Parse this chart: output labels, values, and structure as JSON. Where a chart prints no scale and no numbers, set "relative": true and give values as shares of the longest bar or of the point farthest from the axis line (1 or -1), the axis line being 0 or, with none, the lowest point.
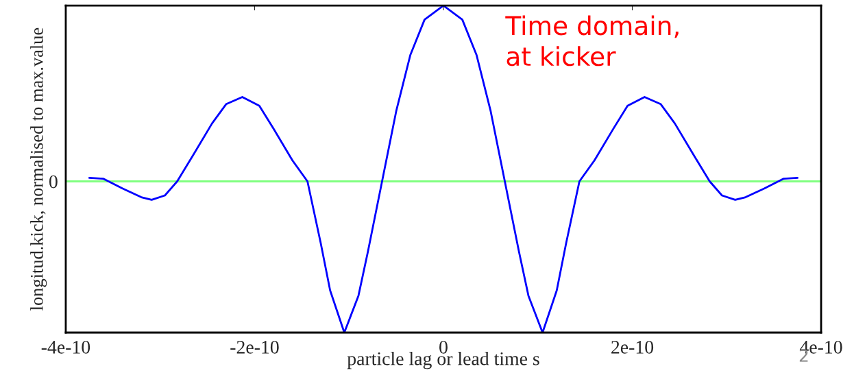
{
  "chart_data": {
    "type": "line",
    "relative": true,
    "xlabel": "particle lag or lead time s",
    "ylabel": "longitud.kick, normalised to max.value",
    "xlim": [
      -4e-10,
      4e-10
    ],
    "xticks": [
      {
        "value": -4e-10,
        "label": "-4e-10"
      },
      {
        "value": -2e-10,
        "label": "-2e-10"
      },
      {
        "value": 0,
        "label": "0"
      },
      {
        "value": 2e-10,
        "label": "2e-10"
      },
      {
        "value": 4e-10,
        "label": "4e-10"
      }
    ],
    "series": [
      {
        "color": "#0000ff",
        "x": [
          -3.75e-10,
          -3.6e-10,
          -3.4e-10,
          -3.2e-10,
          -3.09e-10,
          -2.95e-10,
          -2.82e-10,
          -2.65e-10,
          -2.45e-10,
          -2.3e-10,
          -2.13e-10,
          -1.95e-10,
          -1.8e-10,
          -1.6e-10,
          -1.44e-10,
          -1.3e-10,
          -1.2e-10,
          -1.05e-10,
          -9e-11,
          -8e-11,
          -6.5e-11,
          -5e-11,
          -3.5e-11,
          -2e-11,
          0,
          2e-11,
          3.5e-11,
          5e-11,
          6.5e-11,
          8e-11,
          9e-11,
          1.05e-10,
          1.2e-10,
          1.3e-10,
          1.44e-10,
          1.6e-10,
          1.8e-10,
          1.95e-10,
          2.13e-10,
          2.3e-10,
          2.45e-10,
          2.65e-10,
          2.82e-10,
          2.95e-10,
          3.09e-10,
          3.2e-10,
          3.4e-10,
          3.6e-10,
          3.75e-10
        ],
        "values": [
          0.02,
          0.015,
          -0.04,
          -0.09,
          -0.105,
          -0.08,
          0.0,
          0.15,
          0.33,
          0.44,
          0.48,
          0.43,
          0.3,
          0.12,
          0.0,
          -0.35,
          -0.62,
          -0.86,
          -0.65,
          -0.4,
          0.0,
          0.4,
          0.72,
          0.92,
          1.0,
          0.92,
          0.72,
          0.4,
          0.0,
          -0.4,
          -0.65,
          -0.86,
          -0.62,
          -0.35,
          0.0,
          0.12,
          0.3,
          0.43,
          0.48,
          0.44,
          0.33,
          0.15,
          0.0,
          -0.08,
          -0.105,
          -0.09,
          -0.04,
          0.015,
          0.02
        ]
      }
    ],
    "ref_lines": [
      {
        "axis": "y",
        "value": 0,
        "label": "0",
        "color": "#80ff80"
      }
    ],
    "annotations": [
      "Time domain,\nat kicker",
      "2"
    ],
    "grid": false,
    "legend": false
  }
}
